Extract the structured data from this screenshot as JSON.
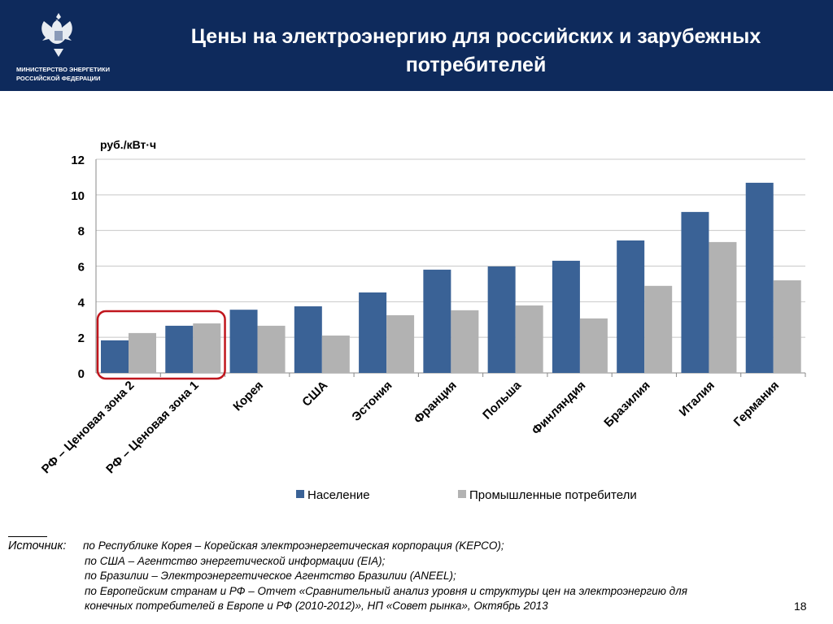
{
  "header": {
    "title": "Цены на электроэнергию для российских и зарубежных потребителей",
    "ministry_line1": "МИНИСТЕРСТВО ЭНЕРГЕТИКИ",
    "ministry_line2": "РОССИЙСКОЙ ФЕДЕРАЦИИ",
    "logo": "double-headed-eagle-emblem"
  },
  "chart_data": {
    "type": "bar",
    "ylabel": "руб./кВт·ч",
    "ylim": [
      0,
      12
    ],
    "yticks": [
      0,
      2,
      4,
      6,
      8,
      10,
      12
    ],
    "grid": true,
    "legend_position": "bottom",
    "categories": [
      "РФ – Ценовая зона 2",
      "РФ – Ценовая зона 1",
      "Корея",
      "США",
      "Эстония",
      "Франция",
      "Польша",
      "Финляндия",
      "Бразилия",
      "Италия",
      "Германия"
    ],
    "series": [
      {
        "name": "Население",
        "color": "#3a6296",
        "values": [
          1.83,
          2.65,
          3.55,
          3.74,
          4.52,
          5.8,
          5.98,
          6.3,
          7.44,
          9.04,
          10.68
        ]
      },
      {
        "name": "Промышленные потребители",
        "color": "#b2b2b2",
        "values": [
          2.24,
          2.78,
          2.65,
          2.1,
          3.24,
          3.52,
          3.79,
          3.06,
          4.89,
          7.35,
          5.2
        ]
      }
    ],
    "highlight": {
      "categories": [
        "РФ – Ценовая зона 2",
        "РФ – Ценовая зона 1"
      ],
      "color": "#c0161d"
    }
  },
  "source": {
    "label": "Источник:",
    "lines": [
      "по Республике Корея – Корейская электроэнергетическая корпорация (KEPCO);",
      "по США – Агентство энергетической информации (EIA);",
      "по Бразилии – Электроэнергетическое Агентство Бразилии (ANEEL);",
      "по Европейским странам и РФ – Отчет «Сравнительный анализ уровня и структуры цен на электроэнергию для",
      "конечных потребителей в Европе и РФ (2010-2012)», НП «Совет рынка», Октябрь 2013"
    ]
  },
  "page_number": "18"
}
